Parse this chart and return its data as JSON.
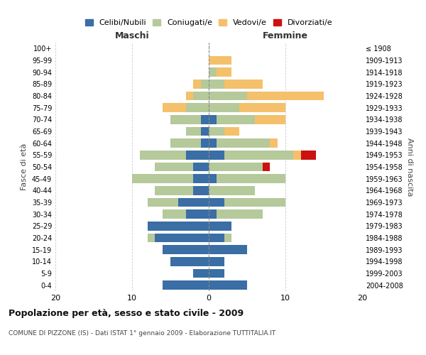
{
  "age_groups": [
    "0-4",
    "5-9",
    "10-14",
    "15-19",
    "20-24",
    "25-29",
    "30-34",
    "35-39",
    "40-44",
    "45-49",
    "50-54",
    "55-59",
    "60-64",
    "65-69",
    "70-74",
    "75-79",
    "80-84",
    "85-89",
    "90-94",
    "95-99",
    "100+"
  ],
  "birth_years": [
    "2004-2008",
    "1999-2003",
    "1994-1998",
    "1989-1993",
    "1984-1988",
    "1979-1983",
    "1974-1978",
    "1969-1973",
    "1964-1968",
    "1959-1963",
    "1954-1958",
    "1949-1953",
    "1944-1948",
    "1939-1943",
    "1934-1938",
    "1929-1933",
    "1924-1928",
    "1919-1923",
    "1914-1918",
    "1909-1913",
    "≤ 1908"
  ],
  "colors": {
    "celibi": "#3a6ea5",
    "coniugati": "#b5c99a",
    "vedovi": "#f5c06b",
    "divorziati": "#cc1111"
  },
  "males": {
    "celibi": [
      6,
      2,
      5,
      6,
      7,
      8,
      3,
      4,
      2,
      2,
      2,
      3,
      1,
      1,
      1,
      0,
      0,
      0,
      0,
      0,
      0
    ],
    "coniugati": [
      0,
      0,
      0,
      0,
      1,
      0,
      3,
      4,
      5,
      8,
      5,
      6,
      4,
      2,
      4,
      3,
      2,
      1,
      0,
      0,
      0
    ],
    "vedovi": [
      0,
      0,
      0,
      0,
      0,
      0,
      0,
      0,
      0,
      0,
      0,
      0,
      0,
      0,
      0,
      3,
      1,
      1,
      0,
      0,
      0
    ],
    "divorziati": [
      0,
      0,
      0,
      0,
      0,
      0,
      0,
      0,
      0,
      0,
      0,
      0,
      0,
      0,
      0,
      0,
      0,
      0,
      0,
      0,
      0
    ]
  },
  "females": {
    "celibi": [
      5,
      2,
      2,
      5,
      2,
      3,
      1,
      2,
      0,
      1,
      0,
      2,
      1,
      0,
      1,
      0,
      0,
      0,
      0,
      0,
      0
    ],
    "coniugati": [
      0,
      0,
      0,
      0,
      1,
      0,
      6,
      8,
      6,
      9,
      7,
      9,
      7,
      2,
      5,
      4,
      5,
      2,
      1,
      0,
      0
    ],
    "vedovi": [
      0,
      0,
      0,
      0,
      0,
      0,
      0,
      0,
      0,
      0,
      0,
      1,
      1,
      2,
      4,
      6,
      10,
      5,
      2,
      3,
      0
    ],
    "divorziati": [
      0,
      0,
      0,
      0,
      0,
      0,
      0,
      0,
      0,
      0,
      1,
      2,
      0,
      0,
      0,
      0,
      0,
      0,
      0,
      0,
      0
    ]
  },
  "title": "Popolazione per età, sesso e stato civile - 2009",
  "subtitle": "COMUNE DI PIZZONE (IS) - Dati ISTAT 1° gennaio 2009 - Elaborazione TUTTITALIA.IT",
  "xlabel_left": "Maschi",
  "xlabel_right": "Femmine",
  "ylabel_left": "Fasce di età",
  "ylabel_right": "Anni di nascita",
  "xlim": 20,
  "legend_labels": [
    "Celibi/Nubili",
    "Coniugati/e",
    "Vedovi/e",
    "Divorziati/e"
  ],
  "background_color": "#ffffff",
  "bar_height": 0.75
}
